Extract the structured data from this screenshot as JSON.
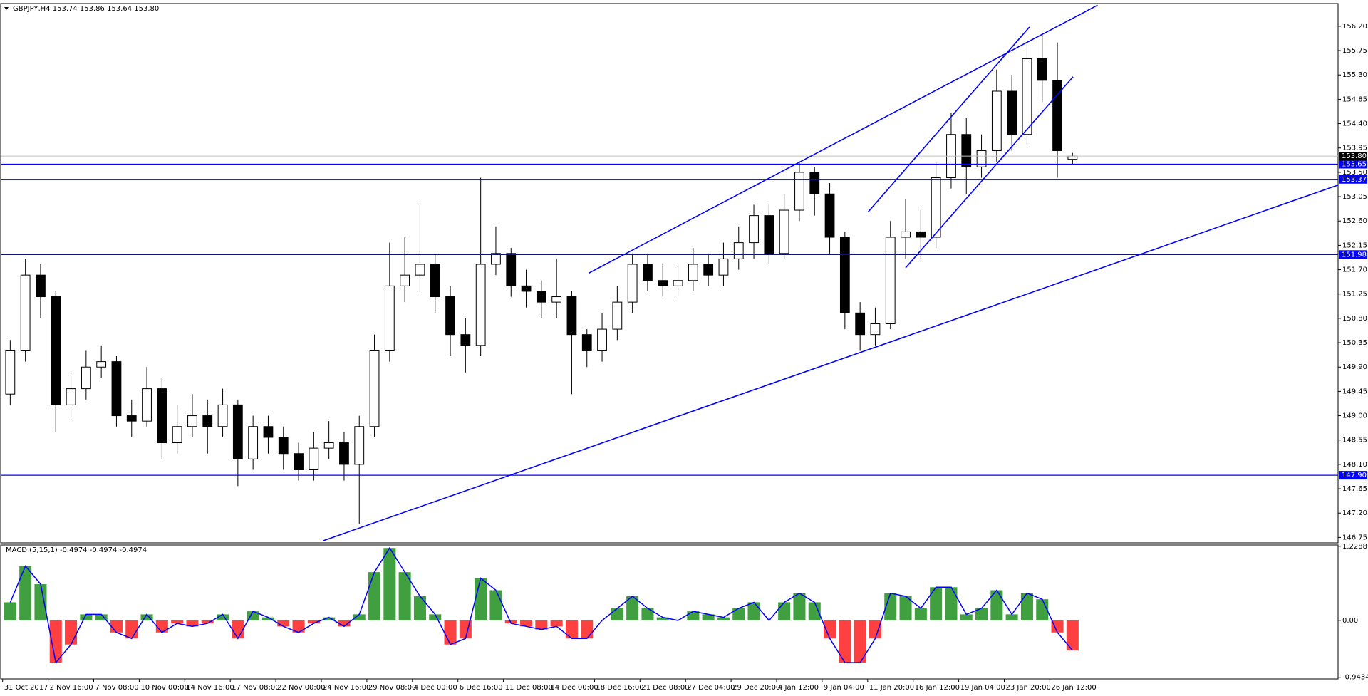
{
  "chart_data": [
    {
      "type": "candlestick",
      "title": "GBPJPY,H4  153.74 153.86 153.64 153.80",
      "categories": [
        "31 Oct 2017",
        null,
        null,
        "2 Nov 16:00",
        null,
        null,
        "7 Nov 08:00",
        null,
        null,
        "10 Nov 00:00",
        null,
        null,
        "14 Nov 16:00",
        null,
        null,
        "17 Nov 08:00",
        null,
        null,
        "22 Nov 00:00",
        null,
        null,
        "24 Nov 16:00",
        null,
        null,
        "29 Nov 08:00",
        null,
        null,
        "4 Dec 00:00",
        null,
        null,
        "6 Dec 16:00",
        null,
        null,
        "11 Dec 08:00",
        null,
        null,
        "14 Dec 00:00",
        null,
        null,
        "18 Dec 16:00",
        null,
        null,
        "21 Dec 08:00",
        null,
        null,
        "27 Dec 04:00",
        null,
        null,
        "29 Dec 20:00",
        null,
        null,
        "4 Jan 12:00",
        null,
        null,
        "9 Jan 04:00",
        null,
        null,
        "11 Jan 20:00",
        null,
        null,
        "16 Jan 12:00",
        null,
        null,
        "19 Jan 04:00",
        null,
        null,
        "23 Jan 20:00",
        null,
        null,
        "26 Jan 12:00",
        null
      ],
      "open": [
        149.4,
        150.2,
        151.6,
        151.2,
        149.2,
        149.5,
        149.9,
        150.0,
        149.0,
        148.9,
        149.5,
        148.5,
        148.8,
        149.0,
        148.8,
        149.2,
        148.2,
        148.8,
        148.6,
        148.3,
        148.0,
        148.4,
        148.5,
        148.1,
        148.8,
        150.2,
        151.4,
        151.6,
        151.8,
        151.2,
        150.5,
        150.3,
        151.8,
        152.0,
        151.4,
        151.3,
        151.1,
        151.2,
        150.5,
        150.2,
        150.6,
        151.1,
        151.8,
        151.5,
        151.4,
        151.5,
        151.8,
        151.6,
        151.9,
        152.2,
        152.7,
        152.0,
        152.8,
        153.5,
        153.1,
        152.3,
        150.9,
        150.5,
        150.7,
        152.3,
        152.4,
        152.3,
        153.4,
        154.2,
        153.6,
        153.9,
        155.0,
        154.2,
        155.6,
        155.2,
        153.74
      ],
      "high": [
        150.4,
        151.9,
        151.8,
        151.3,
        149.8,
        150.2,
        150.3,
        150.1,
        149.3,
        149.9,
        149.7,
        149.2,
        149.4,
        149.3,
        149.5,
        149.3,
        149.0,
        149.0,
        148.8,
        148.5,
        148.7,
        148.9,
        148.7,
        149.0,
        150.5,
        152.2,
        152.3,
        152.9,
        152.0,
        151.4,
        150.8,
        153.4,
        152.5,
        152.1,
        151.7,
        151.5,
        151.9,
        151.3,
        150.6,
        150.9,
        151.4,
        152.0,
        152.0,
        151.8,
        151.8,
        152.1,
        152.0,
        152.2,
        152.5,
        152.9,
        152.9,
        153.1,
        153.7,
        153.6,
        153.3,
        152.4,
        151.1,
        151.0,
        152.6,
        153.0,
        152.8,
        153.7,
        154.6,
        154.5,
        154.2,
        155.4,
        155.3,
        155.9,
        156.05,
        155.9,
        153.86
      ],
      "low": [
        149.2,
        150.0,
        150.8,
        148.7,
        148.9,
        149.3,
        149.7,
        148.8,
        148.6,
        148.8,
        148.2,
        148.3,
        148.6,
        148.3,
        148.6,
        147.7,
        148.0,
        148.3,
        148.0,
        147.8,
        147.8,
        148.2,
        147.8,
        147.0,
        148.6,
        150.0,
        151.1,
        151.3,
        150.9,
        150.1,
        149.8,
        150.1,
        151.6,
        151.2,
        151.0,
        150.8,
        150.8,
        149.4,
        149.9,
        150.0,
        150.4,
        150.9,
        151.3,
        151.2,
        151.2,
        151.3,
        151.4,
        151.4,
        151.7,
        151.9,
        151.8,
        151.9,
        152.6,
        152.7,
        152.0,
        150.6,
        150.2,
        150.3,
        150.6,
        151.9,
        151.9,
        152.1,
        153.2,
        153.1,
        153.4,
        153.7,
        153.9,
        154.0,
        154.8,
        153.4,
        153.64
      ],
      "close": [
        150.2,
        151.6,
        151.2,
        149.2,
        149.5,
        149.9,
        150.0,
        149.0,
        148.9,
        149.5,
        148.5,
        148.8,
        149.0,
        148.8,
        149.2,
        148.2,
        148.8,
        148.6,
        148.3,
        148.0,
        148.4,
        148.5,
        148.1,
        148.8,
        150.2,
        151.4,
        151.6,
        151.8,
        151.2,
        150.5,
        150.3,
        151.8,
        152.0,
        151.4,
        151.3,
        151.1,
        151.2,
        150.5,
        150.2,
        150.6,
        151.1,
        151.8,
        151.5,
        151.4,
        151.5,
        151.8,
        151.6,
        151.9,
        152.2,
        152.7,
        152.0,
        152.8,
        153.5,
        153.1,
        152.3,
        150.9,
        150.5,
        150.7,
        152.3,
        152.4,
        152.3,
        153.4,
        154.2,
        153.6,
        153.9,
        155.0,
        154.2,
        155.6,
        155.2,
        153.9,
        153.8
      ],
      "up_color": "#ffffff",
      "down_color": "#000000",
      "wick_color": "#000000",
      "ylim": [
        146.65,
        156.62
      ],
      "yticks": [
        {
          "value": 156.2,
          "label": "156.20"
        },
        155.75,
        {
          "value": 155.3,
          "label": "155.30"
        },
        154.85,
        {
          "value": 154.4,
          "label": "154.40"
        },
        153.95,
        {
          "value": 153.5,
          "label": "153.50"
        },
        153.05,
        {
          "value": 152.6,
          "label": "152.60"
        },
        152.15,
        {
          "value": 151.7,
          "label": "151.70"
        },
        151.25,
        {
          "value": 150.8,
          "label": "150.80"
        },
        150.35,
        {
          "value": 149.9,
          "label": "149.90"
        },
        149.45,
        {
          "value": 149.0,
          "label": "149.00"
        },
        148.55,
        {
          "value": 148.1,
          "label": "148.10"
        },
        147.65,
        {
          "value": 147.2,
          "label": "147.20"
        },
        146.75
      ],
      "levels": [
        153.65,
        153.37,
        151.98,
        {
          "value": 147.9,
          "label": "147.90"
        }
      ],
      "level_color": "#0000ff",
      "last_price": {
        "value": 153.8,
        "label": "153.80"
      }
    },
    {
      "type": "macd",
      "title": "MACD (5,15,1) -0.4974 -0.4974 -0.4974",
      "values": [
        0.3,
        0.9,
        0.6,
        -0.7,
        -0.4,
        0.1,
        0.1,
        -0.2,
        -0.3,
        0.1,
        -0.2,
        -0.05,
        -0.1,
        -0.05,
        0.1,
        -0.3,
        0.15,
        0.05,
        -0.1,
        -0.2,
        -0.05,
        0.05,
        -0.1,
        0.1,
        0.8,
        1.2,
        0.8,
        0.4,
        0.1,
        -0.4,
        -0.3,
        0.7,
        0.5,
        -0.05,
        -0.1,
        -0.15,
        -0.1,
        -0.3,
        -0.3,
        0,
        0.2,
        0.4,
        0.2,
        0.05,
        0,
        0.15,
        0.1,
        0.05,
        0.2,
        0.3,
        0,
        0.3,
        0.45,
        0.3,
        -0.3,
        -0.7,
        -0.7,
        -0.3,
        0.45,
        0.4,
        0.2,
        0.55,
        0.55,
        0.1,
        0.2,
        0.5,
        0.1,
        0.45,
        0.35,
        -0.2,
        -0.4974
      ],
      "positive_color": "#008000",
      "negative_color": "#ff0000",
      "line_color": "#0000ff",
      "ylim": [
        -0.97,
        1.25
      ],
      "yticks": [
        1.2288,
        {
          "value": 0,
          "label": "0.00"
        },
        -0.9434
      ]
    }
  ]
}
